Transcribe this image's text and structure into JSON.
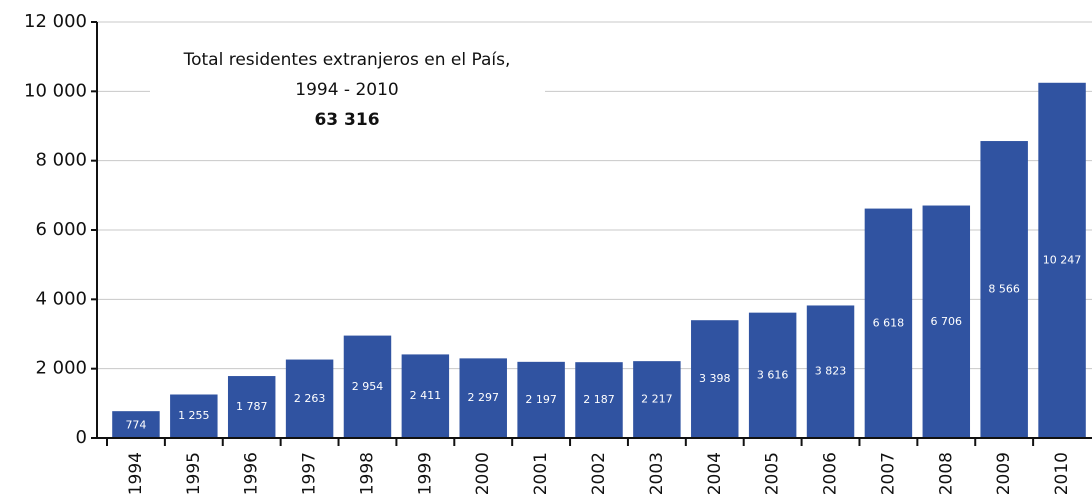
{
  "chart_data": {
    "type": "bar",
    "categories": [
      "1994",
      "1995",
      "1996",
      "1997",
      "1998",
      "1999",
      "2000",
      "2001",
      "2002",
      "2003",
      "2004",
      "2005",
      "2006",
      "2007",
      "2008",
      "2009",
      "2010"
    ],
    "values": [
      774,
      1255,
      1787,
      2263,
      2954,
      2411,
      2297,
      2197,
      2187,
      2217,
      3398,
      3616,
      3823,
      6618,
      6706,
      8566,
      10247
    ],
    "value_labels": [
      "774",
      "1 255",
      "1 787",
      "2 263",
      "2 954",
      "2 411",
      "2 297",
      "2 197",
      "2 187",
      "2 217",
      "3 398",
      "3 616",
      "3 823",
      "6 618",
      "6 706",
      "8 566",
      "10 247"
    ],
    "color": "#3053a1",
    "ylim": [
      0,
      12000
    ],
    "yticks": [
      0,
      {
        "value": 2000,
        "label": "2 000"
      },
      {
        "value": 4000,
        "label": "4 000"
      },
      {
        "value": 6000,
        "label": "6 000"
      },
      {
        "value": 8000,
        "label": "8 000"
      },
      {
        "value": 10000,
        "label": "10 000"
      },
      {
        "value": 12000,
        "label": "12 000"
      }
    ],
    "grid": true,
    "annotation": {
      "line1": "Total residentes extranjeros en el País,",
      "line2": "1994 - 2010",
      "total": "63 316"
    }
  }
}
